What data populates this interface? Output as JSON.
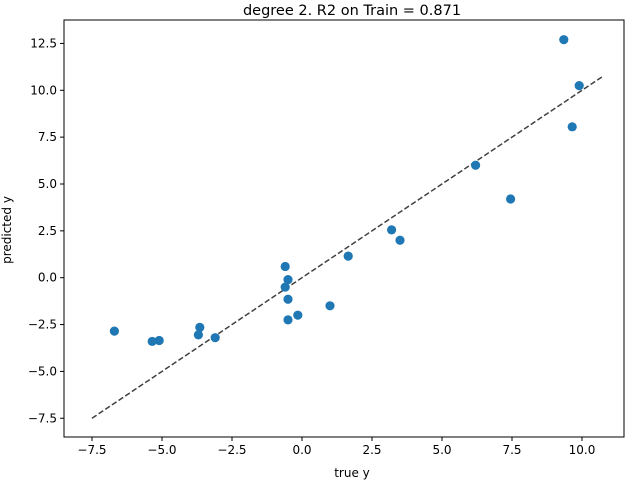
{
  "chart_data": {
    "type": "scatter",
    "title": "degree 2. R2 on Train = 0.871",
    "xlabel": "true y",
    "ylabel": "predicted y",
    "xlim": [
      -8.5,
      11.5
    ],
    "ylim": [
      -8.5,
      13.75
    ],
    "xticks": [
      -7.5,
      -5.0,
      -2.5,
      0.0,
      2.5,
      5.0,
      7.5,
      10.0
    ],
    "xtick_labels": [
      "−7.5",
      "−5.0",
      "−2.5",
      "0.0",
      "2.5",
      "5.0",
      "7.5",
      "10.0"
    ],
    "yticks": [
      -7.5,
      -5.0,
      -2.5,
      0.0,
      2.5,
      5.0,
      7.5,
      10.0,
      12.5
    ],
    "ytick_labels": [
      "−7.5",
      "−5.0",
      "−2.5",
      "0.0",
      "2.5",
      "5.0",
      "7.5",
      "10.0",
      "12.5"
    ],
    "grid": false,
    "legend": "none",
    "series": [
      {
        "marker_color": "#1f77b4",
        "points": [
          {
            "x": -6.7,
            "y": -2.85
          },
          {
            "x": -5.35,
            "y": -3.4
          },
          {
            "x": -5.1,
            "y": -3.35
          },
          {
            "x": -3.65,
            "y": -2.65
          },
          {
            "x": -3.7,
            "y": -3.05
          },
          {
            "x": -3.1,
            "y": -3.2
          },
          {
            "x": -0.6,
            "y": 0.6
          },
          {
            "x": -0.5,
            "y": -0.1
          },
          {
            "x": -0.6,
            "y": -0.5
          },
          {
            "x": -0.5,
            "y": -1.15
          },
          {
            "x": -0.5,
            "y": -2.25
          },
          {
            "x": -0.15,
            "y": -2.0
          },
          {
            "x": 1.0,
            "y": -1.5
          },
          {
            "x": 1.65,
            "y": 1.15
          },
          {
            "x": 3.2,
            "y": 2.55
          },
          {
            "x": 3.5,
            "y": 2.0
          },
          {
            "x": 6.2,
            "y": 6.0
          },
          {
            "x": 7.45,
            "y": 4.2
          },
          {
            "x": 9.35,
            "y": 12.7
          },
          {
            "x": 9.65,
            "y": 8.05
          },
          {
            "x": 9.9,
            "y": 10.25
          }
        ]
      }
    ],
    "reference_line": {
      "style": "dashed",
      "color": "#404040",
      "from": [
        -7.5,
        -7.5
      ],
      "to": [
        10.75,
        10.75
      ]
    }
  }
}
